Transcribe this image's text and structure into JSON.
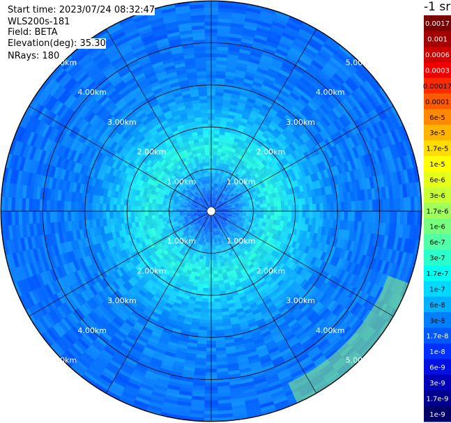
{
  "info": {
    "start_time": "Start time: 2023/07/24 08:32:47",
    "instrument": "WLS200s-181",
    "field": "Field: BETA",
    "elevation": "Elevation(deg): 35.30",
    "nrays": "NRays: 180"
  },
  "chart_data": {
    "type": "heatmap",
    "projection": "polar-ppi",
    "field": "BETA",
    "elevation_deg": 35.3,
    "nrays": 180,
    "max_range_km": 5.0,
    "range_rings_km": [
      1.0,
      2.0,
      3.0,
      4.0,
      5.0
    ],
    "range_ring_labels": [
      "1.00km",
      "2.00km",
      "3.00km",
      "4.00km",
      "5.00km"
    ],
    "spoke_angles_deg": [
      0,
      30,
      60,
      90,
      120,
      150,
      180,
      210,
      240,
      270,
      300,
      330
    ],
    "colorbar": {
      "unit": "-1 sr",
      "scale": "log",
      "range": [
        1e-09,
        0.0017
      ],
      "labels": [
        "0.0017",
        "0.001",
        "0.0006",
        "0.0003",
        "0.00017",
        "0.0001",
        "6e-5",
        "3e-5",
        "1.7e-5",
        "1e-5",
        "6e-6",
        "3e-6",
        "1.7e-6",
        "1e-6",
        "6e-7",
        "3e-7",
        "1.7e-7",
        "1e-7",
        "6e-8",
        "3e-8",
        "1.7e-8",
        "1e-8",
        "6e-9",
        "3e-9",
        "1.7e-9",
        "1e-9"
      ],
      "colors": [
        "#7a0000",
        "#a40000",
        "#cd0000",
        "#f00000",
        "#ff2a00",
        "#ff5a00",
        "#ff8a00",
        "#ffb400",
        "#ffdc00",
        "#ffff00",
        "#e6ff1a",
        "#c8ff37",
        "#a0ff5a",
        "#78ff80",
        "#50ffa6",
        "#2affcc",
        "#00fff0",
        "#00d8ff",
        "#00b0ff",
        "#0080ff",
        "#0058ff",
        "#0030ff",
        "#0010e0",
        "#0000b8",
        "#000090",
        "#000068"
      ],
      "label_text_colors": [
        "#ffffff",
        "#ffffff",
        "#ffffff",
        "#ffffff",
        "#000000",
        "#000000",
        "#000000",
        "#000000",
        "#000000",
        "#000000",
        "#000000",
        "#000000",
        "#000000",
        "#000000",
        "#000000",
        "#000000",
        "#000000",
        "#000000",
        "#000000",
        "#000000",
        "#ffffff",
        "#ffffff",
        "#ffffff",
        "#ffffff",
        "#ffffff",
        "#ffffff"
      ]
    },
    "radial_profile": [
      {
        "range_km": 0.3,
        "color_hint": "#1e6bff"
      },
      {
        "range_km": 1.0,
        "color_hint": "#1fc8ff"
      },
      {
        "range_km": 1.5,
        "color_hint": "#2aeee0"
      },
      {
        "range_km": 2.0,
        "color_hint": "#18d0ff"
      },
      {
        "range_km": 2.5,
        "color_hint": "#0fa8ff"
      },
      {
        "range_km": 3.0,
        "color_hint": "#0a86ff"
      },
      {
        "range_km": 4.0,
        "color_hint": "#0a78ff"
      },
      {
        "range_km": 5.0,
        "color_hint": "#0a70ff"
      }
    ],
    "grid": true
  }
}
